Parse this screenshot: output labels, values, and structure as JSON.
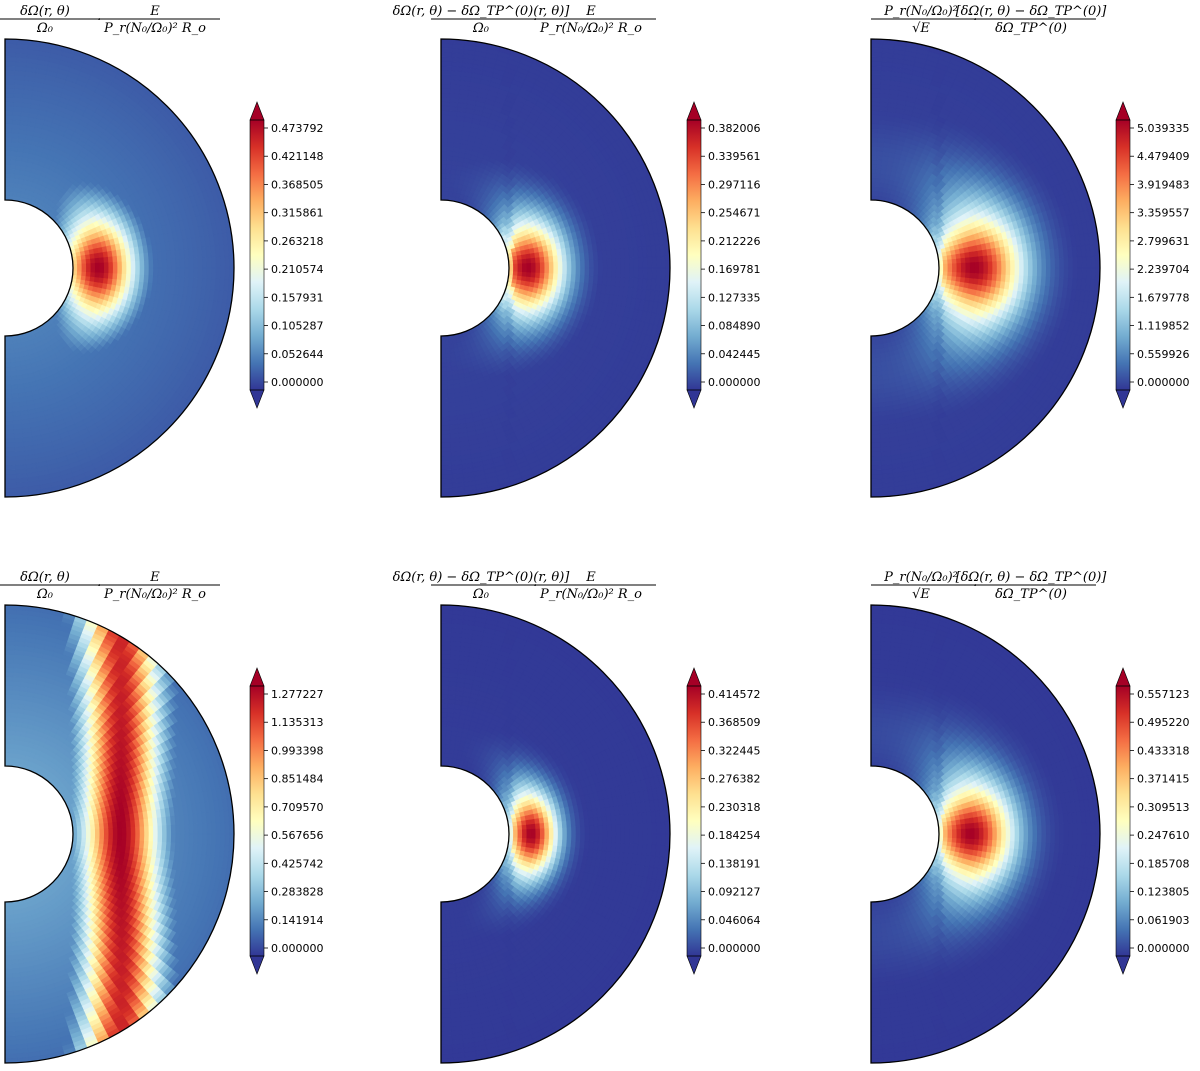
{
  "figure": {
    "colormap": [
      "#313695",
      "#4575b4",
      "#74add1",
      "#abd9e9",
      "#e0f3f8",
      "#ffffbf",
      "#fee090",
      "#fdae61",
      "#f46d43",
      "#d73027",
      "#a50026"
    ],
    "shape": "semi-annulus"
  },
  "chart_data": [
    {
      "type": "heatmap",
      "title_lines": [
        "δΩ(r, θ)  ·  E",
        "Ω₀  ·  P_r(N₀/Ω₀)² R_o"
      ],
      "title_num": "δΩ(r, θ)",
      "title_den": "Ω₀",
      "title_num2": "E",
      "title_den2": "P_r(N₀/Ω₀)² R_o",
      "colorbar_ticks": [
        "0.473792",
        "0.421148",
        "0.368505",
        "0.315861",
        "0.263218",
        "0.210574",
        "0.157931",
        "0.105287",
        "0.052644",
        "0.000000"
      ],
      "vmin": 0.0,
      "vmax": 0.473792,
      "pattern": "band",
      "band_center": 0.16,
      "band_width": 0.22,
      "lat_decay": 1.6,
      "floor": 0.12,
      "tangent_split": false
    },
    {
      "type": "heatmap",
      "title_num": "δΩ(r, θ) − δΩ_TP^(0)(r, θ)]",
      "title_den": "Ω₀",
      "title_num2": "E",
      "title_den2": "P_r(N₀/Ω₀)² R_o",
      "colorbar_ticks": [
        "0.382006",
        "0.339561",
        "0.297116",
        "0.254671",
        "0.212226",
        "0.169781",
        "0.127335",
        "0.084890",
        "0.042445",
        "0.000000"
      ],
      "vmin": 0.0,
      "vmax": 0.382006,
      "pattern": "band",
      "band_center": 0.12,
      "band_width": 0.22,
      "lat_decay": 1.8,
      "floor": 0.02,
      "tangent_split": true
    },
    {
      "type": "heatmap",
      "title_num": "P_r(N₀/Ω₀)²",
      "title_den": "√E",
      "title_num2": "[δΩ(r, θ) − δΩ_TP^(0)]",
      "title_den2": "δΩ_TP^(0)",
      "colorbar_ticks": [
        "5.039335",
        "4.479409",
        "3.919483",
        "3.359557",
        "2.799631",
        "2.239704",
        "1.679778",
        "1.119852",
        "0.559926",
        "0.000000"
      ],
      "vmin": 0.0,
      "vmax": 5.039335,
      "pattern": "blob",
      "band_center": 0.22,
      "band_width": 0.3,
      "lat_decay": 1.2,
      "floor": 0.02,
      "tangent_split": true
    },
    {
      "type": "heatmap",
      "title_num": "δΩ(r, θ)",
      "title_den": "Ω₀",
      "title_num2": "E",
      "title_den2": "P_r(N₀/Ω₀)² R_o",
      "colorbar_ticks": [
        "1.277227",
        "1.135313",
        "0.993398",
        "0.851484",
        "0.709570",
        "0.567656",
        "0.425742",
        "0.283828",
        "0.141914",
        "0.000000"
      ],
      "vmin": 0.0,
      "vmax": 1.277227,
      "pattern": "column",
      "band_center": 0.3,
      "band_width": 0.16,
      "lat_decay": 0.35,
      "floor": 0.18,
      "tangent_split": false
    },
    {
      "type": "heatmap",
      "title_num": "δΩ(r, θ) − δΩ_TP^(0)(r, θ)]",
      "title_den": "Ω₀",
      "title_num2": "E",
      "title_den2": "P_r(N₀/Ω₀)² R_o",
      "colorbar_ticks": [
        "0.414572",
        "0.368509",
        "0.322445",
        "0.276382",
        "0.230318",
        "0.184254",
        "0.138191",
        "0.092127",
        "0.046064",
        "0.000000"
      ],
      "vmin": 0.0,
      "vmax": 0.414572,
      "pattern": "band",
      "band_center": 0.14,
      "band_width": 0.16,
      "lat_decay": 2.2,
      "floor": 0.01,
      "tangent_split": true
    },
    {
      "type": "heatmap",
      "title_num": "P_r(N₀/Ω₀)²",
      "title_den": "√E",
      "title_num2": "[δΩ(r, θ) − δΩ_TP^(0)]",
      "title_den2": "δΩ_TP^(0)",
      "colorbar_ticks": [
        "0.557123",
        "0.495220",
        "0.433318",
        "0.371415",
        "0.309513",
        "0.247610",
        "0.185708",
        "0.123805",
        "0.061903",
        "0.000000"
      ],
      "vmin": 0.0,
      "vmax": 0.557123,
      "pattern": "blob",
      "band_center": 0.2,
      "band_width": 0.26,
      "lat_decay": 1.3,
      "floor": 0.01,
      "tangent_split": true
    }
  ]
}
